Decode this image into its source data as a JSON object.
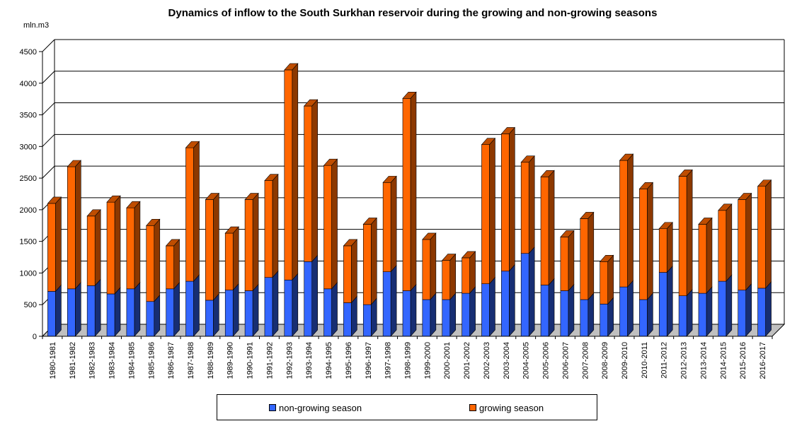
{
  "chart_data": {
    "type": "bar",
    "stacked": true,
    "style": "3d",
    "title": "Dynamics of inflow to the South Surkhan reservoir during the growing and non-growing seasons",
    "ylabel": "mln.m3",
    "xlabel": "",
    "ylim": [
      0,
      4500
    ],
    "yticks": [
      0,
      500,
      1000,
      1500,
      2000,
      2500,
      3000,
      3500,
      4000,
      4500
    ],
    "grid": true,
    "legend_position": "bottom",
    "categories": [
      "1980-1981",
      "1981-1982",
      "1982-1983",
      "1983-1984",
      "1984-1985",
      "1985-1986",
      "1986-1987",
      "1987-1988",
      "1988-1989",
      "1989-1990",
      "1990-1991",
      "1991-1992",
      "1992-1993",
      "1993-1994",
      "1994-1995",
      "1995-1996",
      "1996-1997",
      "1997-1998",
      "1998-1999",
      "1999-2000",
      "2000-2001",
      "2001-2002",
      "2002-2003",
      "2003-2004",
      "2004-2005",
      "2005-2006",
      "2006-2007",
      "2007-2008",
      "2008-2009",
      "2009-2010",
      "2010-2011",
      "2011-2012",
      "2012-2013",
      "2013-2014",
      "2014-2015",
      "2015-2016",
      "2016-2017"
    ],
    "series": [
      {
        "name": "non-growing season",
        "color": "#3366ff",
        "values": [
          710,
          750,
          800,
          670,
          750,
          550,
          750,
          870,
          570,
          730,
          720,
          930,
          890,
          1180,
          750,
          530,
          500,
          1020,
          720,
          580,
          580,
          680,
          830,
          1030,
          1310,
          810,
          720,
          580,
          510,
          780,
          580,
          1010,
          640,
          680,
          870,
          730,
          760
        ]
      },
      {
        "name": "growing season",
        "color": "#ff6600",
        "values": [
          1390,
          1930,
          1100,
          1450,
          1280,
          1200,
          680,
          2110,
          1590,
          900,
          1440,
          1530,
          3320,
          2460,
          1950,
          900,
          1270,
          1410,
          3040,
          950,
          620,
          560,
          2200,
          2170,
          1440,
          1710,
          850,
          1280,
          670,
          2000,
          1750,
          690,
          1890,
          1090,
          1120,
          1430,
          1610
        ]
      }
    ]
  },
  "legend": {
    "items": [
      {
        "label": "non-growing season",
        "color": "#3366ff"
      },
      {
        "label": "growing season",
        "color": "#ff6600"
      }
    ]
  }
}
